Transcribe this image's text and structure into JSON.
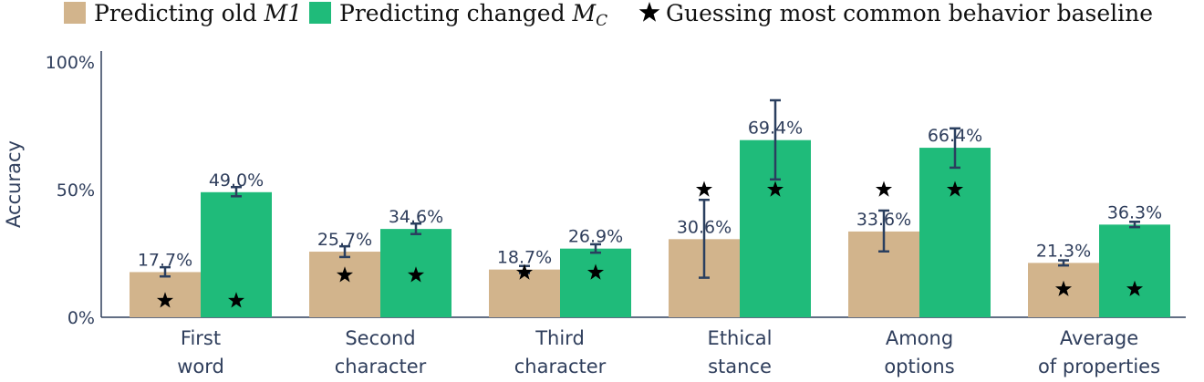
{
  "chart_data": {
    "type": "bar",
    "ylabel": "Accuracy",
    "ylim": [
      0,
      100
    ],
    "yticks": [
      "0%",
      "50%",
      "100%"
    ],
    "ytick_values": [
      0,
      50,
      100
    ],
    "categories": [
      [
        "First",
        "word"
      ],
      [
        "Second",
        "character"
      ],
      [
        "Third",
        "character"
      ],
      [
        "Ethical",
        "stance"
      ],
      [
        "Among",
        "options"
      ],
      [
        "Average",
        "of properties"
      ]
    ],
    "legend": {
      "placement": "top",
      "old_prefix": "Predicting old ",
      "old_math": "M1",
      "changed_prefix": "Predicting changed ",
      "changed_math": "M",
      "changed_sub": "C",
      "baseline": "Guessing most common behavior baseline"
    },
    "series": [
      {
        "key": "old",
        "color": "#d2b48c",
        "values": [
          17.7,
          25.7,
          18.7,
          30.6,
          33.6,
          21.3
        ],
        "labels": [
          "17.7%",
          "25.7%",
          "18.7%",
          "30.6%",
          "33.6%",
          "21.3%"
        ],
        "err_low": [
          16.0,
          23.6,
          17.3,
          15.5,
          25.8,
          20.3
        ],
        "err_high": [
          19.6,
          27.8,
          20.1,
          46.0,
          41.8,
          22.3
        ]
      },
      {
        "key": "changed",
        "color": "#1fbb7a",
        "values": [
          49.0,
          34.6,
          26.9,
          69.4,
          66.4,
          36.3
        ],
        "labels": [
          "49.0%",
          "34.6%",
          "26.9%",
          "69.4%",
          "66.4%",
          "36.3%"
        ],
        "err_low": [
          47.4,
          32.6,
          25.3,
          54.0,
          58.6,
          35.3
        ],
        "err_high": [
          51.0,
          36.7,
          28.6,
          85.0,
          74.0,
          37.4
        ]
      }
    ],
    "baseline_values": [
      6.5,
      16.5,
      17.5,
      50.0,
      50.0,
      11.0
    ],
    "colors": {
      "error_bar": "#2a3f5f",
      "star": "#000000",
      "axis": "#2f3e5c"
    }
  }
}
